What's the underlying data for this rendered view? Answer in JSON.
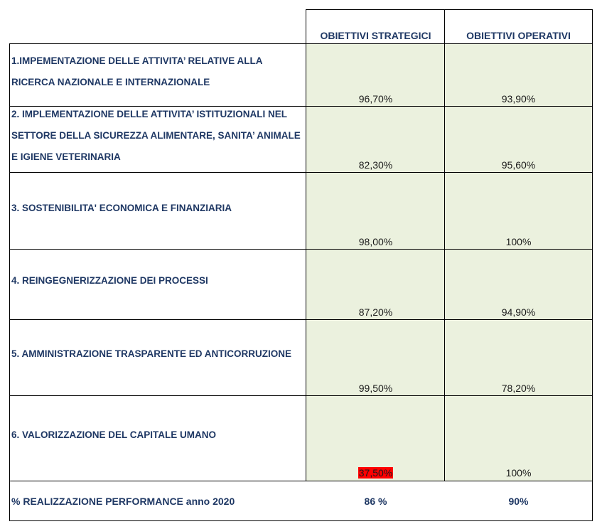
{
  "header": {
    "col_strategic": "OBIETTIVI STRATEGICI",
    "col_operational": "OBIETTIVI OPERATIVI"
  },
  "rows": [
    {
      "label": "1.IMPEMENTAZIONE DELLE ATTIVITA’ RELATIVE ALLA RICERCA NAZIONALE E INTERNAZIONALE",
      "strategic": "96,70%",
      "operational": "93,90%"
    },
    {
      "label": "2. IMPLEMENTAZIONE DELLE ATTIVITA’ ISTITUZIONALI NEL SETTORE DELLA SICUREZZA ALIMENTARE, SANITA’ ANIMALE E IGIENE VETERINARIA",
      "strategic": "82,30%",
      "operational": "95,60%"
    },
    {
      "label": "3. SOSTENIBILITA' ECONOMICA E FINANZIARIA",
      "strategic": "98,00%",
      "operational": "100%"
    },
    {
      "label": "4. REINGEGNERIZZAZIONE DEI PROCESSI",
      "strategic": "87,20%",
      "operational": "94,90%"
    },
    {
      "label": "5. AMMINISTRAZIONE TRASPARENTE ED ANTICORRUZIONE",
      "strategic": "99,50%",
      "operational": "78,20%"
    },
    {
      "label": "6. VALORIZZAZIONE DEL CAPITALE UMANO",
      "strategic": "37,50%",
      "operational": "100%",
      "strategic_highlight_color": "#ff0000"
    }
  ],
  "total": {
    "label": "% REALIZZAZIONE PERFORMANCE anno 2020",
    "strategic": "86 %",
    "operational": "90%"
  },
  "colors": {
    "cell_fill": "#ebf1de",
    "text_dark_blue": "#1f3864",
    "highlight_red": "#ff0000"
  }
}
